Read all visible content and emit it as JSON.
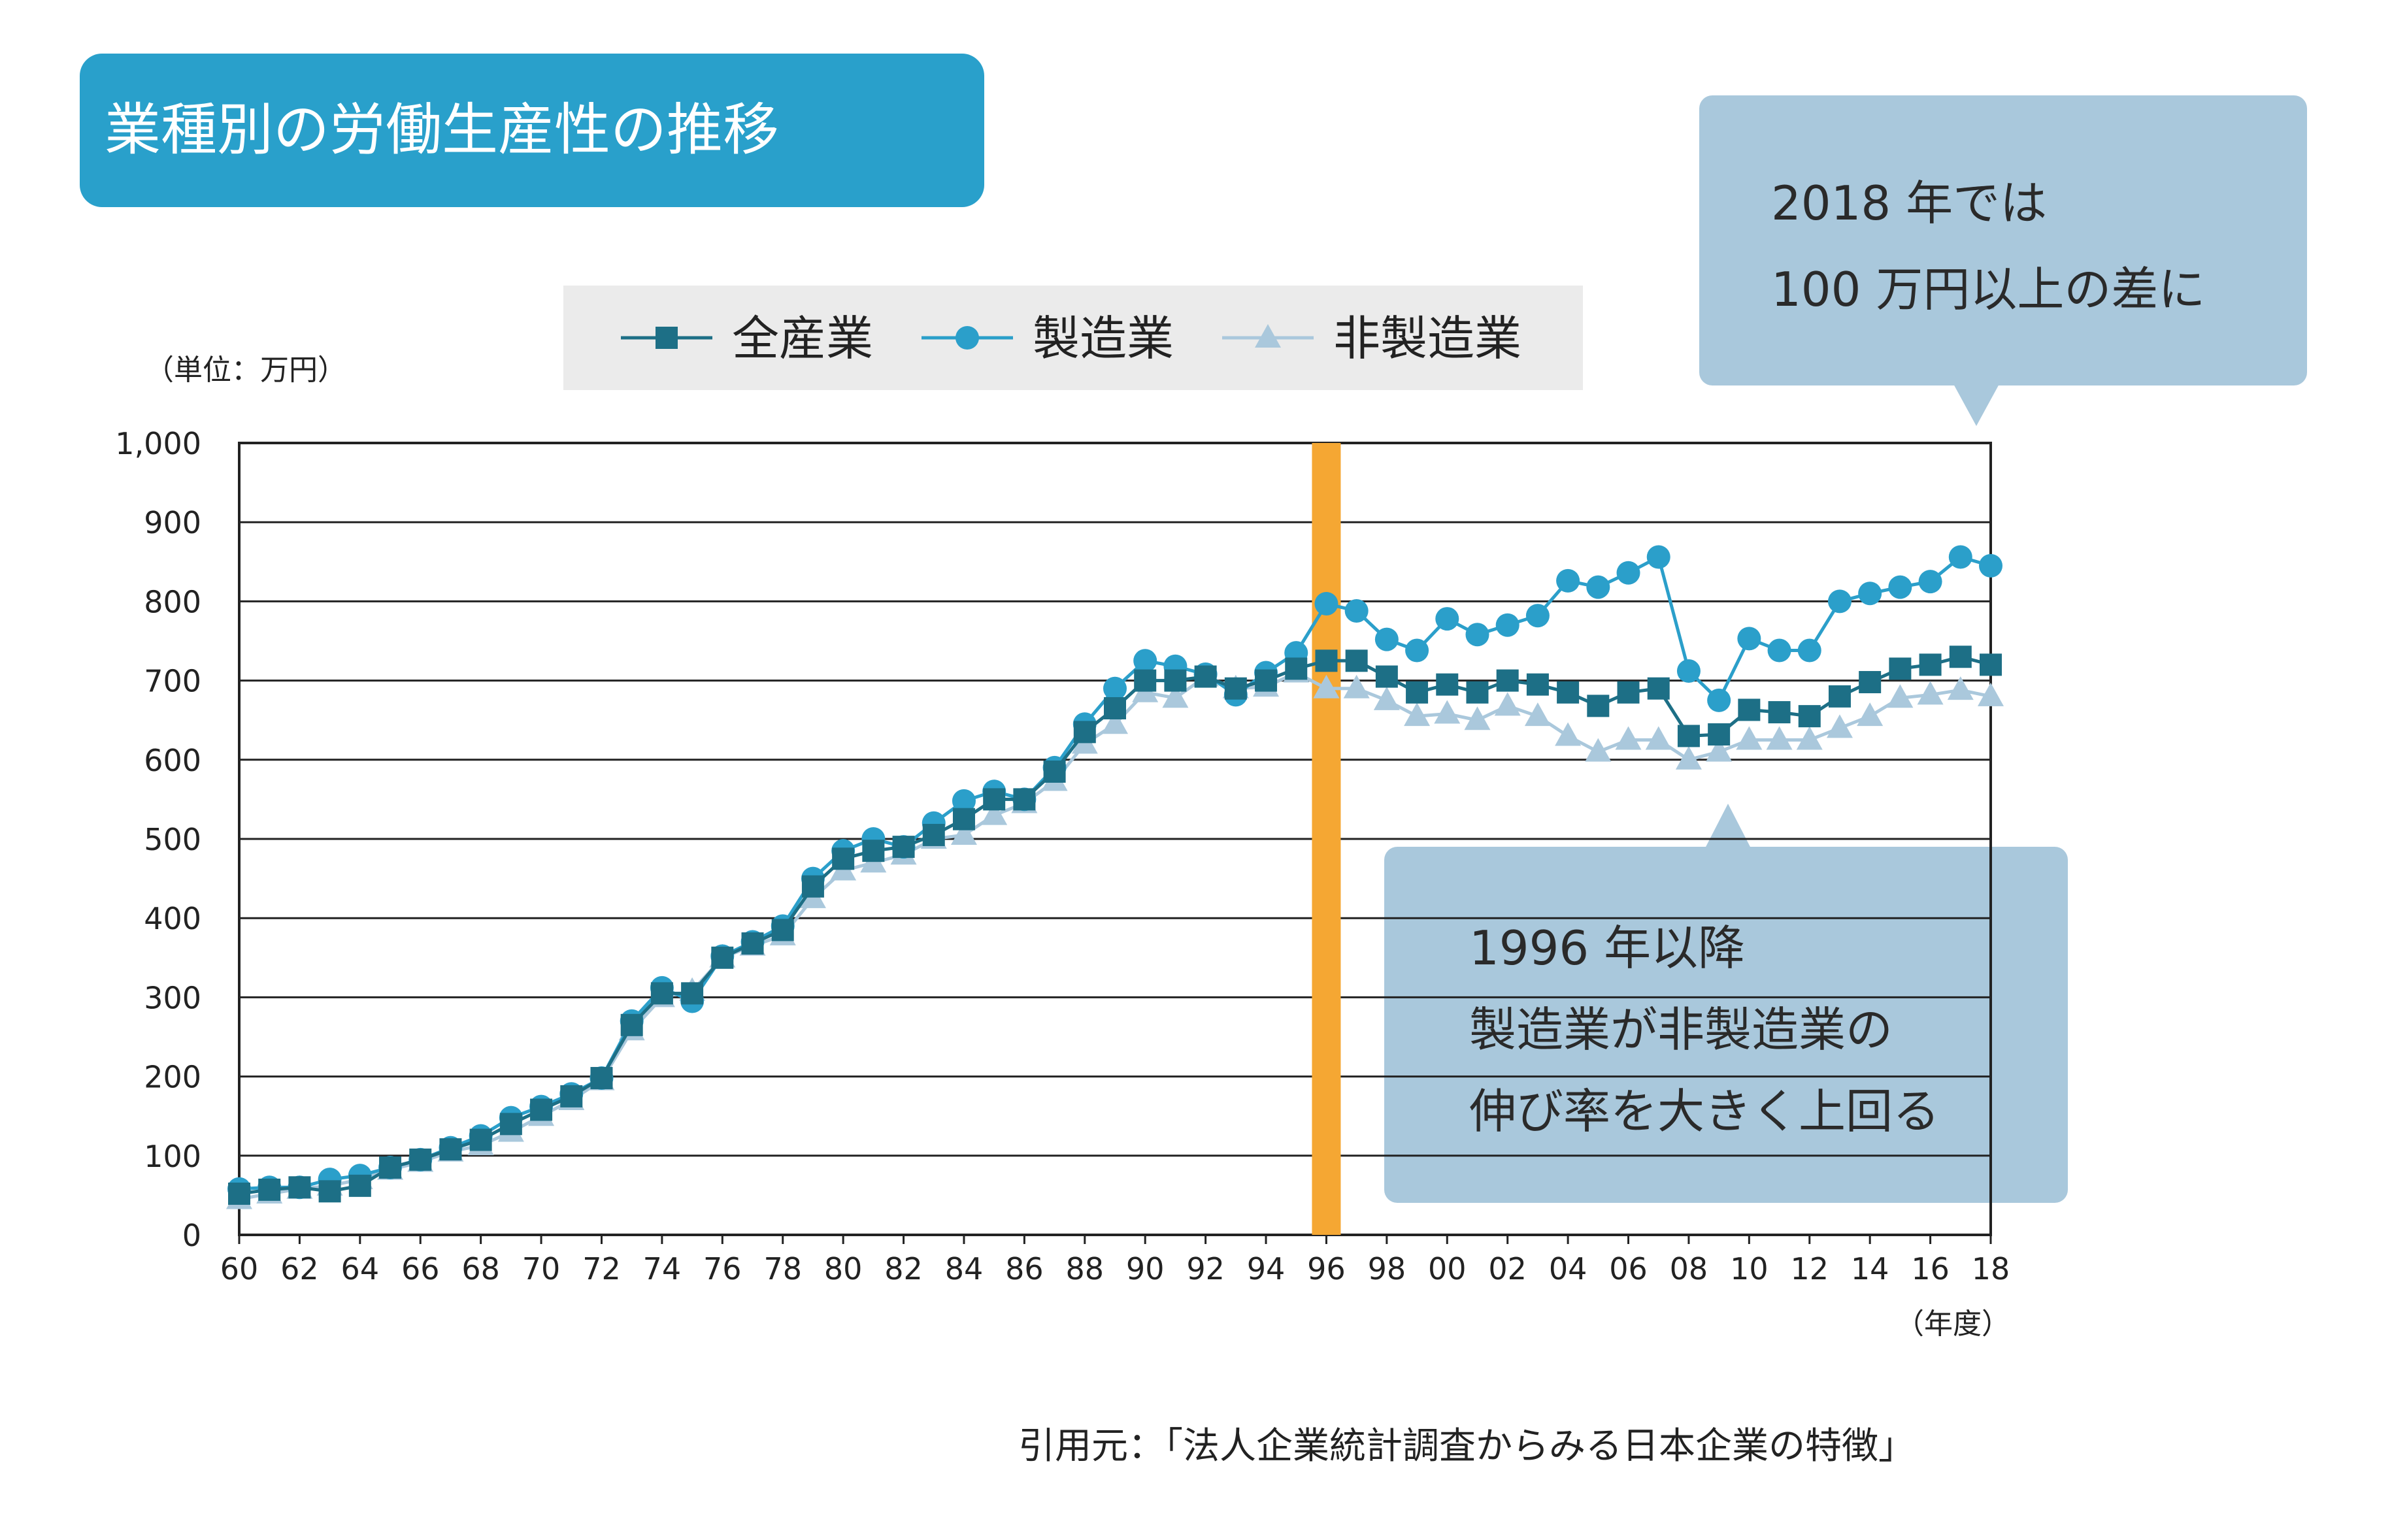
{
  "header": {
    "title": "業種別の労働生産性の推移"
  },
  "unit_label": "（単位：万円）",
  "x_unit_label": "（年度）",
  "source_label": "引用元：「法人企業統計調査からみる日本企業の特徴」",
  "callouts": {
    "top": {
      "line1": "2018 年では",
      "line2": "100 万円以上の差に"
    },
    "bottom": {
      "line1": "1996 年以降",
      "line2": "製造業が非製造業の",
      "line3": "伸び率を大きく上回る"
    }
  },
  "colors": {
    "all": "#1d6f86",
    "manufacturing": "#2b9fca",
    "non_manufacturing": "#aac8dc",
    "highlight": "#f5a733",
    "title_bg": "#29a0cb",
    "callout_bg": "#a9c8dc"
  },
  "chart_data": {
    "type": "line",
    "x": [
      1960,
      1961,
      1962,
      1963,
      1964,
      1965,
      1966,
      1967,
      1968,
      1969,
      1970,
      1971,
      1972,
      1973,
      1974,
      1975,
      1976,
      1977,
      1978,
      1979,
      1980,
      1981,
      1982,
      1983,
      1984,
      1985,
      1986,
      1987,
      1988,
      1989,
      1990,
      1991,
      1992,
      1993,
      1994,
      1995,
      1996,
      1997,
      1998,
      1999,
      2000,
      2001,
      2002,
      2003,
      2004,
      2005,
      2006,
      2007,
      2008,
      2009,
      2010,
      2011,
      2012,
      2013,
      2014,
      2015,
      2016,
      2017,
      2018
    ],
    "x_tick_labels": [
      "60",
      "62",
      "64",
      "66",
      "68",
      "70",
      "72",
      "74",
      "76",
      "78",
      "80",
      "82",
      "84",
      "86",
      "88",
      "90",
      "92",
      "94",
      "96",
      "98",
      "00",
      "02",
      "04",
      "06",
      "08",
      "10",
      "12",
      "14",
      "16",
      "18"
    ],
    "ylim": [
      0,
      1000
    ],
    "y_ticks": [
      0,
      100,
      200,
      300,
      400,
      500,
      600,
      700,
      800,
      900,
      1000
    ],
    "y_tick_labels": [
      "0",
      "100",
      "200",
      "300",
      "400",
      "500",
      "600",
      "700",
      "800",
      "900",
      "1,000"
    ],
    "highlight_x": 1996,
    "grid": true,
    "legend_position": "top",
    "series": [
      {
        "name": "全産業",
        "marker": "square",
        "values": [
          52,
          57,
          60,
          55,
          62,
          85,
          95,
          108,
          120,
          140,
          158,
          175,
          198,
          265,
          305,
          305,
          350,
          368,
          385,
          440,
          475,
          485,
          490,
          505,
          525,
          550,
          550,
          585,
          635,
          665,
          700,
          700,
          705,
          690,
          700,
          715,
          725,
          725,
          705,
          685,
          695,
          685,
          700,
          695,
          685,
          668,
          685,
          690,
          630,
          632,
          663,
          660,
          655,
          680,
          698,
          715,
          720,
          730,
          720
        ]
      },
      {
        "name": "製造業",
        "marker": "circle",
        "values": [
          58,
          60,
          60,
          70,
          75,
          85,
          95,
          110,
          125,
          148,
          162,
          178,
          198,
          270,
          312,
          295,
          352,
          370,
          390,
          450,
          485,
          500,
          490,
          520,
          548,
          560,
          550,
          590,
          645,
          690,
          725,
          718,
          708,
          682,
          710,
          735,
          797,
          788,
          752,
          738,
          778,
          758,
          770,
          782,
          826,
          818,
          836,
          856,
          712,
          675,
          753,
          738,
          738,
          800,
          810,
          818,
          825,
          856,
          845
        ]
      },
      {
        "name": "非製造業",
        "marker": "triangle",
        "values": [
          45,
          52,
          58,
          62,
          70,
          82,
          92,
          105,
          113,
          130,
          150,
          170,
          195,
          258,
          300,
          308,
          350,
          365,
          378,
          425,
          460,
          470,
          480,
          500,
          505,
          530,
          545,
          573,
          620,
          645,
          685,
          678,
          705,
          690,
          692,
          710,
          690,
          690,
          675,
          655,
          658,
          650,
          668,
          655,
          630,
          610,
          625,
          625,
          600,
          610,
          625,
          625,
          625,
          640,
          655,
          678,
          682,
          688,
          680
        ]
      }
    ]
  }
}
